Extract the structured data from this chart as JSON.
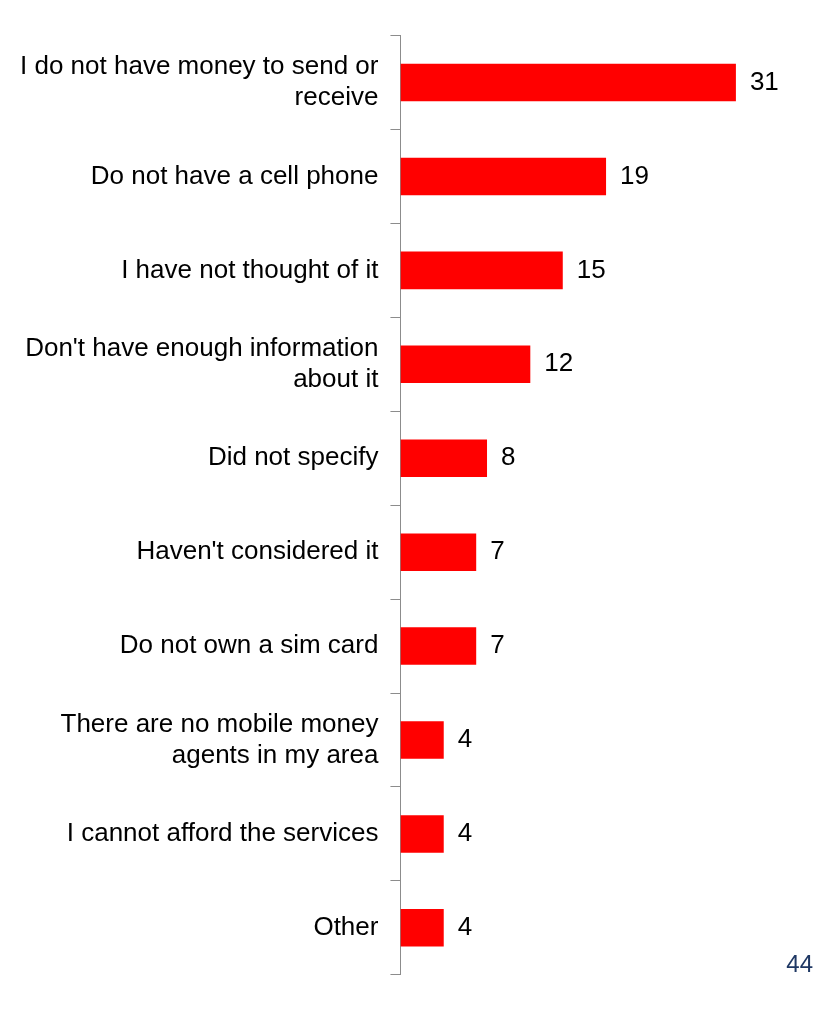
{
  "chart_data": {
    "type": "bar",
    "orientation": "horizontal",
    "categories": [
      "I do not have money to send or receive",
      "Do not have a cell phone",
      "I have not thought of it",
      "Don't have enough information about it",
      "Did not specify",
      "Haven't considered it",
      "Do not own a sim card",
      "There are no mobile money agents in my area",
      "I cannot afford the services",
      "Other"
    ],
    "values": [
      31,
      19,
      15,
      12,
      8,
      7,
      7,
      4,
      4,
      4
    ],
    "color": "#ff0000",
    "data_labels": true,
    "grid": false,
    "legend": false,
    "tick_labels": "y",
    "annotations": [
      "44"
    ]
  }
}
